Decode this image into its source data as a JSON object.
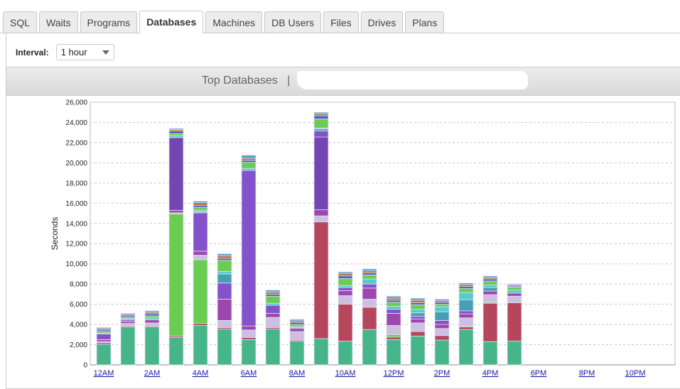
{
  "tabs": [
    {
      "label": "SQL"
    },
    {
      "label": "Waits"
    },
    {
      "label": "Programs"
    },
    {
      "label": "Databases",
      "active": true
    },
    {
      "label": "Machines"
    },
    {
      "label": "DB Users"
    },
    {
      "label": "Files"
    },
    {
      "label": "Drives"
    },
    {
      "label": "Plans"
    }
  ],
  "interval": {
    "label": "Interval:",
    "value": "1 hour"
  },
  "header": {
    "title": "Top Databases",
    "separator": "|"
  },
  "chart_data": {
    "type": "bar",
    "stacked": true,
    "ylabel": "Seconds",
    "ylim": [
      0,
      26000
    ],
    "grid": true,
    "yticks": [
      "0",
      "2,000",
      "4,000",
      "6,000",
      "8,000",
      "10,000",
      "12,000",
      "14,000",
      "16,000",
      "18,000",
      "20,000",
      "22,000",
      "24,000",
      "26,000"
    ],
    "categories": [
      "12AM",
      "1AM",
      "2AM",
      "3AM",
      "4AM",
      "5AM",
      "6AM",
      "7AM",
      "8AM",
      "9AM",
      "10AM",
      "11AM",
      "12PM",
      "1PM",
      "2PM",
      "3PM",
      "4PM",
      "5PM",
      "6PM",
      "7PM",
      "8PM",
      "9PM",
      "10PM",
      "11PM"
    ],
    "xtick_labels": [
      "12AM",
      "2AM",
      "4AM",
      "6AM",
      "8AM",
      "10AM",
      "12PM",
      "2PM",
      "4PM",
      "6PM",
      "8PM",
      "10PM"
    ],
    "series": [
      {
        "color": "#47b58a",
        "values": [
          2050,
          3750,
          3750,
          2700,
          3900,
          3550,
          2500,
          3550,
          2350,
          2600,
          2350,
          3500,
          2500,
          2850,
          2450,
          3500,
          2300,
          2350,
          0,
          0,
          0,
          0,
          0,
          0
        ]
      },
      {
        "color": "#b5465c",
        "values": [
          150,
          100,
          100,
          150,
          200,
          150,
          200,
          150,
          100,
          11550,
          3650,
          2200,
          250,
          450,
          450,
          250,
          3800,
          3800,
          0,
          0,
          0,
          0,
          0,
          0
        ]
      },
      {
        "color": "#6acd52",
        "values": [
          0,
          0,
          0,
          12100,
          6300,
          0,
          0,
          0,
          0,
          0,
          0,
          0,
          250,
          0,
          0,
          100,
          100,
          0,
          0,
          0,
          0,
          0,
          0,
          0
        ]
      },
      {
        "color": "#cdbfe3",
        "values": [
          100,
          250,
          300,
          100,
          450,
          700,
          750,
          1000,
          850,
          600,
          850,
          800,
          900,
          850,
          700,
          800,
          750,
          650,
          0,
          0,
          0,
          0,
          0,
          0
        ]
      },
      {
        "color": "#9d46b0",
        "values": [
          200,
          200,
          300,
          250,
          400,
          2100,
          400,
          400,
          300,
          600,
          500,
          1100,
          1200,
          400,
          400,
          400,
          350,
          300,
          0,
          0,
          0,
          0,
          0,
          0
        ]
      },
      {
        "color": "#7446b3",
        "values": [
          0,
          0,
          0,
          7200,
          0,
          0,
          0,
          0,
          0,
          7200,
          0,
          0,
          0,
          0,
          0,
          0,
          0,
          0,
          0,
          0,
          0,
          0,
          0,
          0
        ]
      },
      {
        "color": "#8452cb",
        "values": [
          550,
          150,
          0,
          0,
          3800,
          1600,
          15400,
          800,
          100,
          600,
          300,
          400,
          400,
          250,
          400,
          300,
          0,
          0,
          0,
          0,
          0,
          0,
          0,
          0
        ]
      },
      {
        "color": "#469fb5",
        "values": [
          0,
          0,
          0,
          0,
          100,
          900,
          0,
          0,
          0,
          200,
          0,
          0,
          0,
          350,
          850,
          1100,
          350,
          0,
          0,
          0,
          0,
          0,
          0,
          0
        ]
      },
      {
        "color": "#52cdcd",
        "values": [
          100,
          150,
          200,
          200,
          150,
          250,
          200,
          200,
          100,
          100,
          200,
          500,
          300,
          350,
          500,
          700,
          250,
          300,
          0,
          0,
          0,
          0,
          0,
          0
        ]
      },
      {
        "color": "#6acd52",
        "values": [
          150,
          100,
          200,
          200,
          300,
          1100,
          600,
          700,
          200,
          900,
          700,
          400,
          400,
          450,
          250,
          400,
          400,
          300,
          0,
          0,
          0,
          0,
          0,
          0
        ]
      },
      {
        "color": "#4659b5",
        "values": [
          150,
          150,
          200,
          250,
          200,
          200,
          200,
          200,
          200,
          300,
          250,
          200,
          200,
          200,
          200,
          200,
          200,
          100,
          0,
          0,
          0,
          0,
          0,
          0
        ]
      },
      {
        "color": "#b57046",
        "values": [
          150,
          150,
          150,
          150,
          250,
          250,
          200,
          200,
          150,
          200,
          250,
          200,
          200,
          250,
          150,
          200,
          150,
          100,
          0,
          0,
          0,
          0,
          0,
          0
        ]
      },
      {
        "color": "#52a0d0",
        "values": [
          100,
          100,
          150,
          100,
          150,
          200,
          300,
          200,
          150,
          150,
          150,
          200,
          200,
          200,
          150,
          150,
          150,
          100,
          0,
          0,
          0,
          0,
          0,
          0
        ]
      }
    ]
  }
}
